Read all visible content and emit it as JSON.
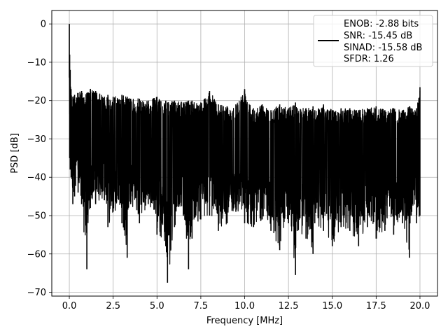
{
  "chart_data": {
    "type": "line",
    "xlabel": "Frequency [MHz]",
    "ylabel": "PSD [dB]",
    "xlim": [
      -1.0,
      21.0
    ],
    "ylim": [
      -71.0,
      3.5
    ],
    "xticks": [
      0.0,
      2.5,
      5.0,
      7.5,
      10.0,
      12.5,
      15.0,
      17.5,
      20.0
    ],
    "xtick_labels": [
      "0.0",
      "2.5",
      "5.0",
      "7.5",
      "10.0",
      "12.5",
      "15.0",
      "17.5",
      "20.0"
    ],
    "yticks": [
      0,
      -10,
      -20,
      -30,
      -40,
      -50,
      -60,
      -70
    ],
    "ytick_labels": [
      "0",
      "−10",
      "−20",
      "−30",
      "−40",
      "−50",
      "−60",
      "−70"
    ],
    "grid": true,
    "legend_position": "top-right",
    "series": [
      {
        "color": "#000000",
        "legend_lines": [
          "ENOB: -2.88 bits",
          "SNR: -15.45 dB",
          "SINAD: -15.58 dB",
          "SFDR: 1.26"
        ],
        "notes": "dense noise floor; envelope points approximate",
        "x": [
          0.0,
          0.02,
          0.05,
          0.1,
          0.2,
          0.3,
          0.5,
          0.7,
          1.0,
          1.2,
          1.5,
          2.0,
          2.2,
          2.5,
          3.0,
          3.3,
          3.5,
          4.0,
          4.5,
          5.0,
          5.5,
          5.6,
          6.0,
          6.5,
          6.8,
          7.0,
          7.5,
          8.0,
          8.5,
          9.0,
          9.5,
          10.0,
          10.5,
          11.0,
          11.5,
          12.0,
          12.5,
          12.9,
          13.0,
          13.5,
          13.9,
          14.0,
          14.5,
          15.0,
          15.5,
          16.0,
          16.5,
          17.0,
          17.5,
          18.0,
          18.5,
          19.0,
          19.4,
          19.5,
          19.8,
          20.0
        ],
        "y_max": [
          0.0,
          -8.0,
          -12.0,
          -17.0,
          -19.0,
          -18.5,
          -18.0,
          -17.5,
          -18.0,
          -17.0,
          -17.5,
          -19.0,
          -18.5,
          -19.0,
          -18.5,
          -19.0,
          -19.5,
          -19.5,
          -20.0,
          -19.0,
          -20.0,
          -20.5,
          -20.0,
          -20.5,
          -20.0,
          -20.0,
          -20.5,
          -17.5,
          -21.0,
          -21.5,
          -21.0,
          -17.0,
          -22.0,
          -21.0,
          -22.5,
          -21.0,
          -22.0,
          -20.5,
          -22.0,
          -22.0,
          -21.5,
          -22.5,
          -21.0,
          -22.5,
          -22.0,
          -22.0,
          -22.5,
          -22.0,
          -21.5,
          -22.5,
          -22.0,
          -22.5,
          -21.5,
          -22.0,
          -22.0,
          -16.5
        ],
        "y_min": [
          -14.0,
          -35.0,
          -38.0,
          -40.0,
          -47.0,
          -45.0,
          -44.0,
          -47.0,
          -64.0,
          -48.0,
          -47.0,
          -46.0,
          -53.0,
          -49.0,
          -52.0,
          -61.0,
          -47.0,
          -52.0,
          -47.0,
          -55.0,
          -58.0,
          -67.5,
          -53.0,
          -50.0,
          -64.0,
          -56.0,
          -51.0,
          -50.0,
          -54.0,
          -52.0,
          -49.0,
          -52.0,
          -53.0,
          -51.0,
          -54.0,
          -59.0,
          -52.0,
          -65.5,
          -54.0,
          -56.0,
          -60.0,
          -52.0,
          -54.0,
          -58.0,
          -53.0,
          -54.0,
          -58.0,
          -53.0,
          -56.0,
          -54.0,
          -55.0,
          -52.0,
          -61.0,
          -50.0,
          -52.0,
          -50.0
        ]
      }
    ]
  }
}
